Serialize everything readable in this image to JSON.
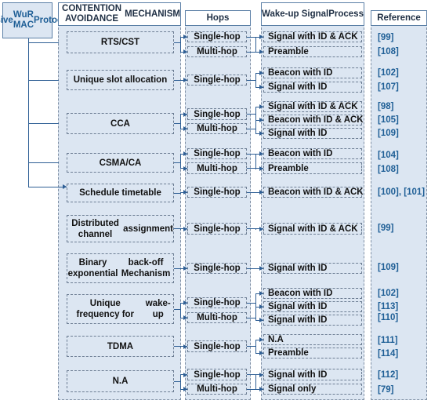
{
  "root": {
    "lines": [
      "Passive",
      "WuR MAC",
      "Protocols"
    ]
  },
  "headers": {
    "mechanism": [
      "CONTENTION AVOIDANCE",
      "MECHANISM"
    ],
    "hops": "Hops",
    "signal": [
      "Wake-up Signal",
      "Process"
    ],
    "reference": "Reference"
  },
  "rows": [
    {
      "mechanism": [
        "RTS/CST"
      ],
      "hops": [
        "Single-hop",
        "Multi-hop"
      ],
      "signals": [
        "Signal with ID & ACK",
        "Preamble"
      ],
      "refs": [
        "[99]",
        "[108]"
      ]
    },
    {
      "mechanism": [
        "Unique slot allocation"
      ],
      "hops": [
        "Single-hop"
      ],
      "signals": [
        "Beacon with ID",
        "Signal with ID"
      ],
      "refs": [
        "[102]",
        "[107]"
      ]
    },
    {
      "mechanism": [
        "CCA"
      ],
      "hops": [
        "Single-hop",
        "Multi-hop"
      ],
      "signals": [
        "Signal with ID & ACK",
        "Beacon with ID & ACK",
        "Signal with ID"
      ],
      "refs": [
        "[98]",
        "[105]",
        "[109]"
      ]
    },
    {
      "mechanism": [
        "CSMA/CA"
      ],
      "hops": [
        "Single-hop",
        "Multi-hop"
      ],
      "signals": [
        "Beacon with ID",
        "Preamble"
      ],
      "refs": [
        "[104]",
        "[108]"
      ]
    },
    {
      "mechanism": [
        "Schedule timetable"
      ],
      "hops": [
        "Single-hop"
      ],
      "signals": [
        "Beacon with ID & ACK"
      ],
      "refs": [
        "[100], [101]"
      ]
    },
    {
      "mechanism": [
        "Distributed channel",
        "assignment"
      ],
      "hops": [
        "Single-hop"
      ],
      "signals": [
        "Signal with ID & ACK"
      ],
      "refs": [
        "[99]"
      ]
    },
    {
      "mechanism": [
        "Binary exponential",
        "back-off Mechanism"
      ],
      "hops": [
        "Single-hop"
      ],
      "signals": [
        "Signal with ID"
      ],
      "refs": [
        "[109]"
      ]
    },
    {
      "mechanism": [
        "Unique frequency for",
        "wake-up"
      ],
      "hops": [
        "Single-hop",
        "Multi-hop"
      ],
      "signals": [
        "Beacon with ID",
        "Signal with ID",
        "Signal with ID"
      ],
      "refs": [
        "[102]",
        "[113]",
        "[110]"
      ]
    },
    {
      "mechanism": [
        "TDMA"
      ],
      "hops": [
        "Single-hop"
      ],
      "signals": [
        "N.A",
        "Preamble"
      ],
      "refs": [
        "[111]",
        "[114]"
      ]
    },
    {
      "mechanism": [
        "N.A"
      ],
      "hops": [
        "Single-hop",
        "Multi-hop"
      ],
      "signals": [
        "Signal with ID",
        "Signal only"
      ],
      "refs": [
        "[112]",
        "[79]"
      ]
    }
  ]
}
